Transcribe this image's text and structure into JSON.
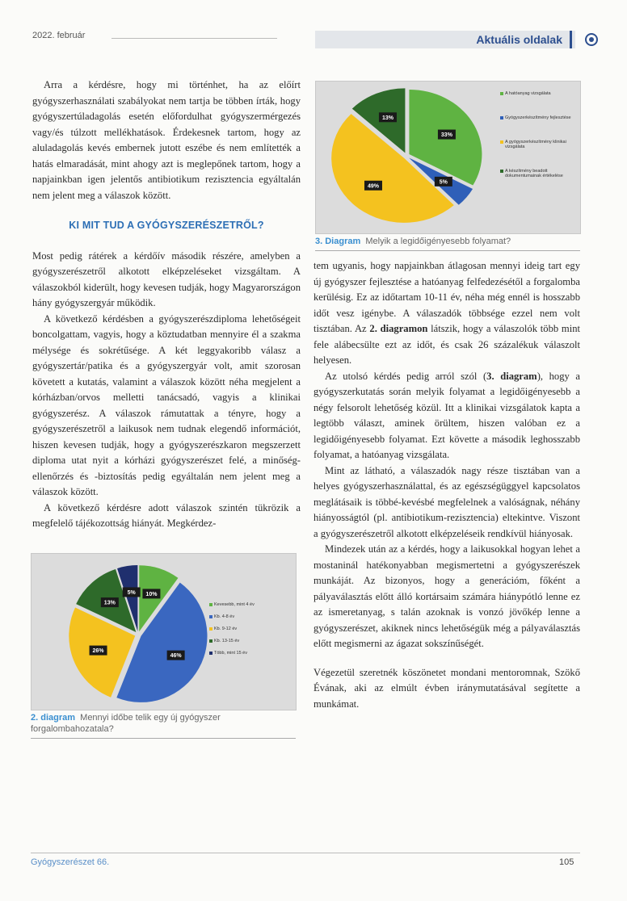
{
  "header": {
    "date": "2022. február",
    "section": "Aktuális oldalak"
  },
  "left_column": {
    "p1": "Arra a kérdésre, hogy mi történhet, ha az előírt gyógyszerhasználati szabályokat nem tartja be többen írták, hogy gyógyszertúladagolás esetén előfordulhat gyógyszermérgezés vagy/és túlzott mellékhatások. Érdekesnek tartom, hogy az aluladagolás kevés embernek jutott eszébe és nem említették a hatás elmaradását, mint ahogy azt is meglepőnek tartom, hogy a napjainkban igen jelentős antibiotikum rezisztencia egyáltalán nem jelent meg a válaszok között.",
    "heading": "KI MIT TUD A GYÓGYSZERÉSZETRŐL?",
    "p2": "Most pedig rátérek a kérdőív második részére, amelyben a gyógyszerészetről alkotott elképzeléseket vizsgáltam. A válaszokból kiderült, hogy kevesen tudják, hogy Magyarországon hány gyógyszergyár működik.",
    "p3": "A következő kérdésben a gyógyszerészdiploma lehetőségeit boncolgattam, vagyis, hogy a köztudatban mennyire él a szakma mélysége és sokrétűsége. A két leggyakoribb válasz a gyógyszertár/patika és a gyógyszergyár volt, amit szorosan követett a kutatás, valamint a válaszok között néha megjelent a kórházban/orvos melletti tanácsadó, vagyis a klinikai gyógyszerész. A válaszok rámutattak a tényre, hogy a gyógyszerészetről a laikusok nem tudnak elegendő információt, hiszen kevesen tudják, hogy a gyógyszerészkaron megszerzett diploma utat nyit a kórházi gyógyszerészet felé, a minőség-ellenőrzés és -biztosítás pedig egyáltalán nem jelent meg a válaszok között.",
    "p4": "A következő kérdésre adott válaszok szintén tükrözik a megfelelő tájékozottság hiányát. Megkérdez-"
  },
  "right_column": {
    "p1": "tem ugyanis, hogy napjainkban átlagosan mennyi ideig tart egy új gyógyszer fejlesztése a hatóanyag felfedezésétől a forgalomba kerülésig. Ez az időtartam 10-11 év, néha még ennél is hosszabb időt vesz igénybe.  A válaszadók többsége ezzel nem volt tisztában. Az ",
    "p1_bold": "2. diagramon",
    "p1_rest": " látszik, hogy a válaszolók több mint fele alábecsülte ezt az időt, és csak 26 százalékuk válaszolt helyesen.",
    "p2_a": "Az utolsó kérdés pedig arról szól (",
    "p2_bold": "3. diagram",
    "p2_b": "), hogy a gyógyszerkutatás során melyik folyamat a legidőigényesebb a négy felsorolt lehetőség közül. Itt a klinikai vizsgálatok kapta a legtöbb választ, aminek örültem, hiszen valóban ez a legidőigényesebb folyamat. Ezt követte a második leghosszabb folyamat, a hatóanyag vizsgálata.",
    "p3": "Mint az látható, a válaszadók nagy része tisztában van a helyes gyógyszerhasználattal, és az egészségüggyel kapcsolatos meglátásaik is többé-kevésbé megfelelnek a valóságnak, néhány hiányosságtól (pl. antibiotikum-rezisztencia) eltekintve. Viszont a gyógyszerészetről alkotott elképzeléseik rendkívül hiányosak.",
    "p4": "Mindezek után az a kérdés, hogy a laikusokkal hogyan lehet a mostaninál hatékonyabban megismertetni a gyógyszerészek munkáját. Az bizonyos, hogy a generációm, főként a pályaválasztás előtt álló kortársaim számára hiánypótló lenne ez az ismeretanyag, s talán azoknak is vonzó jövőkép lenne a gyógyszerészet, akiknek nincs lehetőségük még a pályaválasztás előtt megismerni az ágazat sokszínűségét.",
    "p5": "Végezetül szeretnék köszönetet mondani mentoromnak, Szökő Évának, aki az elmúlt évben iránymutatásával segítette a munkámat."
  },
  "chart_data": [
    {
      "type": "pie",
      "caption_label": "3. Diagram",
      "caption": "Melyik a legidőigényesebb folyamat?",
      "legend_position": "right",
      "categories": [
        "A hatóanyag vizsgálata",
        "Gyógyszerkészítmény fejlesztése",
        "A gyógyszerkészítmény klinikai vizsgálata",
        "A készítmény beadott dokumentumainak értékelése"
      ],
      "values": [
        33,
        5,
        49,
        13
      ],
      "labels": [
        "33%",
        "5%",
        "49%",
        "13%"
      ],
      "colors": [
        "#5fb342",
        "#2f5fb8",
        "#f4c21f",
        "#2e6a2a"
      ]
    },
    {
      "type": "pie",
      "caption_label": "2. diagram",
      "caption": "Mennyi időbe telik egy új gyógyszer forgalombahozatala?",
      "legend_position": "right",
      "categories": [
        "Kevesebb, mint 4 év",
        "Kb. 4-8 év",
        "Kb. 9-12 év",
        "Kb. 13-15 év",
        "Több, mint 15 év"
      ],
      "values": [
        10,
        46,
        26,
        13,
        5
      ],
      "labels": [
        "10%",
        "46%",
        "26%",
        "13%",
        "5%"
      ],
      "colors": [
        "#5fb342",
        "#3a67c0",
        "#f4c21f",
        "#2e6a2a",
        "#1f2f6e"
      ]
    }
  ],
  "footer": {
    "journal": "Gyógyszerészet 66.",
    "page": "105"
  }
}
